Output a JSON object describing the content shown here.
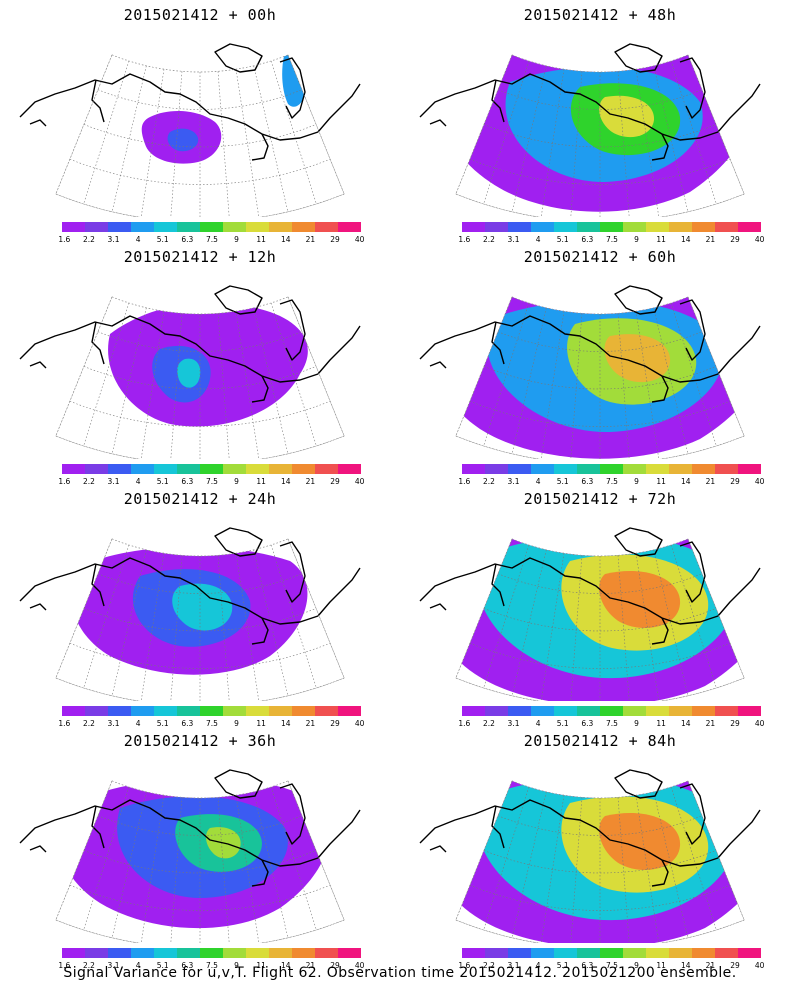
{
  "caption": "Signal Variance for u,v,T. Flight 62. Observation time 2015021412. 2015021200 ensemble.",
  "colorbar": {
    "colors": [
      "#a020f0",
      "#7a3ce6",
      "#3b5bf2",
      "#1f9cf0",
      "#16c6d8",
      "#18c39a",
      "#2fd32c",
      "#a2dc3a",
      "#d9dc3a",
      "#e8b436",
      "#f08a30",
      "#f05050",
      "#f0147e"
    ],
    "tick_labels": [
      "1.6",
      "2.2",
      "3.1",
      "4",
      "5.1",
      "6.3",
      "7.5",
      "9",
      "11",
      "14",
      "21",
      "29",
      "40"
    ]
  },
  "panels": [
    {
      "title": "2015021412 + 00h",
      "level": 0
    },
    {
      "title": "2015021412 + 48h",
      "level": 4
    },
    {
      "title": "2015021412 + 12h",
      "level": 1
    },
    {
      "title": "2015021412 + 60h",
      "level": 5
    },
    {
      "title": "2015021412 + 24h",
      "level": 2
    },
    {
      "title": "2015021412 + 72h",
      "level": 6
    },
    {
      "title": "2015021412 + 36h",
      "level": 3
    },
    {
      "title": "2015021412 + 84h",
      "level": 7
    }
  ]
}
